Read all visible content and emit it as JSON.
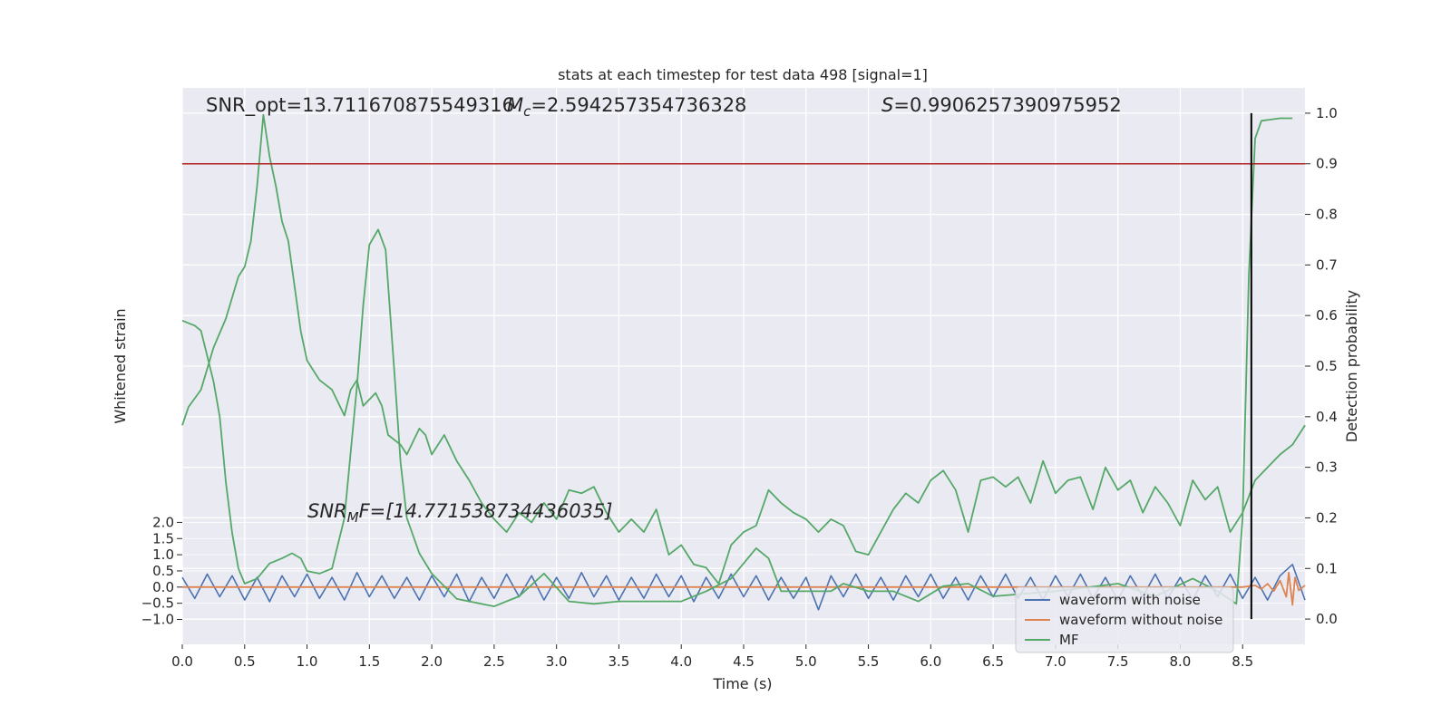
{
  "chart_data": {
    "type": "line",
    "title": "stats at each timestep for test data 498 [signal=1]",
    "xlabel": "Time (s)",
    "ylabel": "Whitened strain",
    "y2label": "Detection probability",
    "xlim": [
      0,
      9.0
    ],
    "xticks": [
      {
        "value": 0,
        "label": "0.0"
      },
      0.5,
      {
        "value": 1,
        "label": "1.0"
      },
      1.5,
      {
        "value": 2,
        "label": "2.0"
      },
      2.5,
      {
        "value": 3,
        "label": "3.0"
      },
      3.5,
      {
        "value": 4,
        "label": "4.0"
      },
      4.5,
      {
        "value": 5,
        "label": "5.0"
      },
      5.5,
      {
        "value": 6,
        "label": "6.0"
      },
      6.5,
      {
        "value": 7,
        "label": "7.0"
      },
      7.5,
      {
        "value": 8,
        "label": "8.0"
      },
      8.5
    ],
    "ylim": [
      -1.77,
      15.43
    ],
    "yticks": [
      {
        "value": -1,
        "label": "−1.0"
      },
      {
        "value": -0.5,
        "label": "−0.5"
      },
      {
        "value": 0,
        "label": "0.0"
      },
      0.5,
      {
        "value": 1,
        "label": "1.0"
      },
      1.5,
      {
        "value": 2,
        "label": "2.0"
      }
    ],
    "y2lim": [
      -0.05,
      1.05
    ],
    "y2ticks": [
      {
        "value": 0,
        "label": "0.0"
      },
      0.1,
      0.2,
      0.3,
      0.4,
      0.5,
      0.6,
      0.7,
      0.8,
      0.9,
      {
        "value": 1,
        "label": "1.0"
      }
    ],
    "grid": true,
    "legend": "best",
    "series": [
      {
        "name": "waveform with noise",
        "color": "#4c72b0",
        "axis": "y",
        "x": [
          0,
          0.1,
          0.2,
          0.3,
          0.4,
          0.5,
          0.6,
          0.7,
          0.8,
          0.9,
          1.0,
          1.1,
          1.2,
          1.3,
          1.4,
          1.5,
          1.6,
          1.7,
          1.8,
          1.9,
          2.0,
          2.1,
          2.2,
          2.3,
          2.4,
          2.5,
          2.6,
          2.7,
          2.8,
          2.9,
          3.0,
          3.1,
          3.2,
          3.3,
          3.4,
          3.5,
          3.6,
          3.7,
          3.8,
          3.9,
          4.0,
          4.1,
          4.2,
          4.3,
          4.4,
          4.5,
          4.6,
          4.7,
          4.8,
          4.9,
          5.0,
          5.1,
          5.2,
          5.3,
          5.4,
          5.5,
          5.6,
          5.7,
          5.8,
          5.9,
          6.0,
          6.1,
          6.2,
          6.3,
          6.4,
          6.5,
          6.6,
          6.7,
          6.8,
          6.9,
          7.0,
          7.1,
          7.2,
          7.3,
          7.4,
          7.5,
          7.6,
          7.7,
          7.8,
          7.9,
          8.0,
          8.1,
          8.2,
          8.3,
          8.4,
          8.5,
          8.6,
          8.7,
          8.8,
          8.9,
          9.0
        ],
        "values": [
          0.3,
          -0.35,
          0.4,
          -0.3,
          0.35,
          -0.4,
          0.3,
          -0.45,
          0.35,
          -0.3,
          0.4,
          -0.35,
          0.3,
          -0.4,
          0.45,
          -0.3,
          0.35,
          -0.35,
          0.3,
          -0.4,
          0.35,
          -0.3,
          0.4,
          -0.45,
          0.3,
          -0.35,
          0.4,
          -0.3,
          0.35,
          -0.4,
          0.3,
          -0.35,
          0.45,
          -0.3,
          0.35,
          -0.4,
          0.3,
          -0.35,
          0.4,
          -0.3,
          0.35,
          -0.45,
          0.3,
          -0.35,
          0.4,
          -0.3,
          0.35,
          -0.4,
          0.3,
          -0.35,
          0.3,
          -0.7,
          0.35,
          -0.3,
          0.4,
          -0.35,
          0.3,
          -0.4,
          0.35,
          -0.3,
          0.4,
          -0.35,
          0.3,
          -0.4,
          0.35,
          -0.3,
          0.4,
          -0.35,
          0.3,
          -0.4,
          0.35,
          -0.3,
          0.4,
          -0.35,
          0.3,
          -0.4,
          0.35,
          -0.3,
          0.4,
          -0.35,
          0.3,
          -0.4,
          0.35,
          -0.3,
          0.4,
          -0.35,
          0.3,
          -0.4,
          0.35,
          0.7,
          -0.4
        ]
      },
      {
        "name": "waveform without noise",
        "color": "#dd8452",
        "axis": "y",
        "x": [
          0,
          8.0,
          8.5,
          8.6,
          8.65,
          8.7,
          8.75,
          8.8,
          8.85,
          8.87,
          8.9,
          8.92,
          8.95,
          9.0
        ],
        "values": [
          0,
          0,
          0,
          0.05,
          -0.06,
          0.1,
          -0.12,
          0.2,
          -0.3,
          0.45,
          -0.55,
          0.3,
          -0.1,
          0.05
        ]
      },
      {
        "name": "MF",
        "color": "#55a868",
        "axis": "y",
        "x": [
          0,
          0.05,
          0.15,
          0.25,
          0.35,
          0.45,
          0.5,
          0.55,
          0.6,
          0.65,
          0.7,
          0.75,
          0.8,
          0.85,
          0.9,
          0.95,
          1.0,
          1.1,
          1.2,
          1.3,
          1.35,
          1.4,
          1.45,
          1.55,
          1.6,
          1.65,
          1.75,
          1.8,
          1.9,
          1.95,
          2.0,
          2.1,
          2.2,
          2.3,
          2.4,
          2.5,
          2.6,
          2.7,
          2.8,
          2.9,
          3.0,
          3.1,
          3.2,
          3.3,
          3.4,
          3.5,
          3.6,
          3.7,
          3.8,
          3.9,
          4.0,
          4.1,
          4.2,
          4.3,
          4.4,
          4.5,
          4.6,
          4.7,
          4.8,
          4.9,
          5.0,
          5.1,
          5.2,
          5.3,
          5.4,
          5.5,
          5.6,
          5.7,
          5.8,
          5.9,
          6.0,
          6.1,
          6.2,
          6.3,
          6.4,
          6.5,
          6.6,
          6.7,
          6.8,
          6.9,
          7.0,
          7.1,
          7.2,
          7.3,
          7.4,
          7.5,
          7.6,
          7.7,
          7.8,
          7.9,
          8.0,
          8.1,
          8.2,
          8.3,
          8.4,
          8.5,
          8.6,
          8.7,
          8.8,
          8.9,
          9.0
        ],
        "values": [
          5.0,
          5.57,
          6.1,
          7.4,
          8.3,
          9.6,
          9.9,
          10.7,
          12.4,
          14.6,
          13.3,
          12.4,
          11.3,
          10.7,
          9.3,
          7.9,
          7.0,
          6.4,
          6.1,
          5.3,
          6.1,
          6.4,
          5.6,
          6.0,
          5.6,
          4.7,
          4.4,
          4.1,
          4.9,
          4.7,
          4.1,
          4.7,
          3.9,
          3.3,
          2.6,
          2.1,
          1.7,
          2.3,
          2.0,
          2.6,
          2.1,
          3.0,
          2.9,
          3.1,
          2.3,
          1.7,
          2.1,
          1.7,
          2.4,
          1.0,
          1.3,
          0.7,
          0.6,
          0.1,
          1.3,
          1.7,
          1.9,
          3.0,
          2.6,
          2.3,
          2.1,
          1.7,
          2.1,
          1.9,
          1.1,
          1.0,
          1.7,
          2.4,
          2.9,
          2.6,
          3.3,
          3.6,
          3.0,
          1.7,
          3.3,
          3.4,
          3.1,
          3.4,
          2.6,
          3.9,
          2.9,
          3.3,
          3.4,
          2.4,
          3.7,
          3.0,
          3.3,
          2.3,
          3.1,
          2.6,
          1.9,
          3.3,
          2.7,
          3.1,
          1.7,
          2.3,
          3.3,
          3.7,
          4.1,
          4.4,
          5.0
        ]
      },
      {
        "color": "#55a868",
        "axis": "y2",
        "x": [
          0,
          0.1,
          0.15,
          0.25,
          0.3,
          0.35,
          0.4,
          0.45,
          0.5,
          0.6,
          0.7,
          0.8,
          0.88,
          0.95,
          1.0,
          1.1,
          1.2,
          1.3,
          1.4,
          1.45,
          1.5,
          1.57,
          1.63,
          1.7,
          1.75,
          1.8,
          1.9,
          2.0,
          2.2,
          2.5,
          2.7,
          2.9,
          3.1,
          3.3,
          3.5,
          3.8,
          4.0,
          4.2,
          4.4,
          4.6,
          4.7,
          4.8,
          5.0,
          5.2,
          5.3,
          5.5,
          5.7,
          5.9,
          6.1,
          6.3,
          6.5,
          7.0,
          7.5,
          7.8,
          8.1,
          8.3,
          8.45,
          8.5,
          8.55,
          8.6,
          8.65,
          8.8,
          8.9
        ],
        "values": [
          0.59,
          0.58,
          0.57,
          0.47,
          0.4,
          0.27,
          0.17,
          0.1,
          0.07,
          0.08,
          0.11,
          0.12,
          0.13,
          0.12,
          0.095,
          0.09,
          0.1,
          0.2,
          0.46,
          0.62,
          0.74,
          0.77,
          0.73,
          0.49,
          0.31,
          0.2,
          0.13,
          0.09,
          0.04,
          0.025,
          0.045,
          0.09,
          0.035,
          0.03,
          0.035,
          0.035,
          0.035,
          0.055,
          0.08,
          0.14,
          0.12,
          0.055,
          0.055,
          0.055,
          0.07,
          0.055,
          0.055,
          0.035,
          0.065,
          0.07,
          0.045,
          0.055,
          0.07,
          0.045,
          0.08,
          0.055,
          0.03,
          0.2,
          0.68,
          0.95,
          0.985,
          0.99,
          0.99
        ]
      }
    ],
    "hline": {
      "y2": 0.9,
      "color": "#b22222"
    },
    "vline": {
      "x": 8.57,
      "y2_range": [
        0,
        1
      ],
      "color": "#000000"
    },
    "annotations": [
      {
        "text": "SNR_opt=13.711670875549316"
      },
      {
        "symbol": "M",
        "subscript": "c",
        "text": "=2.594257354736328"
      },
      {
        "symbol": "S",
        "text": "=0.9906257390975952"
      },
      {
        "symbol": "SNR",
        "subscript": "M",
        "text": "F=[14.771538734436035]"
      }
    ]
  }
}
